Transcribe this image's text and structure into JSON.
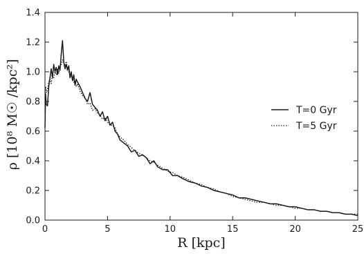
{
  "chart_data": {
    "type": "line",
    "title": "",
    "xlabel": "R [kpc]",
    "ylabel": "ρ [10⁸ M☉ /kpc²]",
    "xlim": [
      0,
      25
    ],
    "ylim": [
      0,
      1.4
    ],
    "xticks": [
      "0",
      "5",
      "10",
      "15",
      "20",
      "25"
    ],
    "yticks": [
      "0.0",
      "0.2",
      "0.4",
      "0.6",
      "0.8",
      "1.0",
      "1.2",
      "1.4"
    ],
    "grid": false,
    "legend_position": "right",
    "series": [
      {
        "name": "T=0 Gyr",
        "linestyle": "solid",
        "color": "#1a1a1a",
        "x": [
          0,
          0.05,
          0.1,
          0.2,
          0.3,
          0.4,
          0.5,
          0.6,
          0.7,
          0.8,
          0.9,
          1.0,
          1.1,
          1.2,
          1.3,
          1.4,
          1.5,
          1.6,
          1.7,
          1.8,
          1.9,
          2.0,
          2.1,
          2.2,
          2.3,
          2.4,
          2.5,
          2.6,
          2.8,
          3.0,
          3.2,
          3.4,
          3.6,
          3.8,
          4.0,
          4.2,
          4.4,
          4.6,
          4.8,
          5.0,
          5.2,
          5.4,
          5.6,
          5.8,
          6.0,
          6.3,
          6.6,
          6.9,
          7.2,
          7.5,
          7.8,
          8.1,
          8.4,
          8.7,
          9.0,
          9.4,
          9.8,
          10.2,
          10.6,
          11.0,
          11.5,
          12.0,
          12.5,
          13.0,
          13.5,
          14.0,
          14.5,
          15.0,
          15.5,
          16.0,
          16.5,
          17.0,
          17.5,
          18.0,
          18.5,
          19.0,
          19.5,
          20.0,
          20.5,
          21.0,
          21.5,
          22.0,
          22.5,
          23.0,
          23.5,
          24.0,
          24.5,
          25.0
        ],
        "y": [
          0.62,
          0.85,
          0.78,
          0.77,
          0.9,
          0.96,
          1.02,
          0.96,
          1.05,
          1.0,
          1.03,
          0.98,
          1.04,
          1.01,
          1.12,
          1.21,
          1.07,
          1.02,
          1.05,
          1.01,
          1.04,
          0.96,
          1.0,
          0.94,
          0.98,
          0.91,
          0.95,
          0.93,
          0.9,
          0.86,
          0.82,
          0.8,
          0.86,
          0.78,
          0.76,
          0.74,
          0.7,
          0.73,
          0.67,
          0.7,
          0.64,
          0.66,
          0.6,
          0.58,
          0.54,
          0.52,
          0.5,
          0.46,
          0.47,
          0.43,
          0.44,
          0.42,
          0.38,
          0.4,
          0.36,
          0.34,
          0.34,
          0.3,
          0.3,
          0.28,
          0.26,
          0.25,
          0.23,
          0.22,
          0.2,
          0.19,
          0.18,
          0.17,
          0.15,
          0.15,
          0.14,
          0.13,
          0.12,
          0.11,
          0.11,
          0.1,
          0.09,
          0.09,
          0.08,
          0.07,
          0.07,
          0.06,
          0.06,
          0.05,
          0.05,
          0.04,
          0.04,
          0.03
        ]
      },
      {
        "name": "T=5 Gyr",
        "linestyle": "dotted",
        "color": "#1a1a1a",
        "x": [
          0,
          0.05,
          0.1,
          0.2,
          0.3,
          0.4,
          0.5,
          0.6,
          0.7,
          0.8,
          0.9,
          1.0,
          1.1,
          1.2,
          1.3,
          1.4,
          1.5,
          1.6,
          1.7,
          1.8,
          1.9,
          2.0,
          2.1,
          2.2,
          2.3,
          2.4,
          2.5,
          2.6,
          2.8,
          3.0,
          3.2,
          3.4,
          3.6,
          3.8,
          4.0,
          4.2,
          4.4,
          4.6,
          4.8,
          5.0,
          5.2,
          5.4,
          5.6,
          5.8,
          6.0,
          6.3,
          6.6,
          6.9,
          7.2,
          7.5,
          7.8,
          8.1,
          8.4,
          8.7,
          9.0,
          9.4,
          9.8,
          10.2,
          10.6,
          11.0,
          11.5,
          12.0,
          12.5,
          13.0,
          13.5,
          14.0,
          14.5,
          15.0,
          15.5,
          16.0,
          16.5,
          17.0,
          17.5,
          18.0,
          18.5,
          19.0,
          19.5,
          20.0,
          20.5,
          21.0,
          21.5,
          22.0,
          22.5,
          23.0,
          23.5,
          24.0,
          24.5,
          25.0
        ],
        "y": [
          0.82,
          0.9,
          0.86,
          0.88,
          0.93,
          0.95,
          0.92,
          0.98,
          0.96,
          1.0,
          0.98,
          1.02,
          0.99,
          1.03,
          1.05,
          1.08,
          1.06,
          1.04,
          1.07,
          1.02,
          1.0,
          0.98,
          0.96,
          0.97,
          0.93,
          0.94,
          0.9,
          0.92,
          0.87,
          0.84,
          0.83,
          0.78,
          0.79,
          0.74,
          0.75,
          0.72,
          0.71,
          0.68,
          0.69,
          0.66,
          0.64,
          0.64,
          0.62,
          0.58,
          0.56,
          0.54,
          0.51,
          0.49,
          0.47,
          0.45,
          0.44,
          0.42,
          0.4,
          0.39,
          0.37,
          0.35,
          0.33,
          0.32,
          0.3,
          0.29,
          0.27,
          0.25,
          0.24,
          0.22,
          0.21,
          0.19,
          0.18,
          0.16,
          0.15,
          0.14,
          0.13,
          0.12,
          0.12,
          0.11,
          0.1,
          0.1,
          0.09,
          0.08,
          0.08,
          0.07,
          0.07,
          0.06,
          0.06,
          0.05,
          0.05,
          0.04,
          0.04,
          0.04
        ]
      }
    ]
  }
}
